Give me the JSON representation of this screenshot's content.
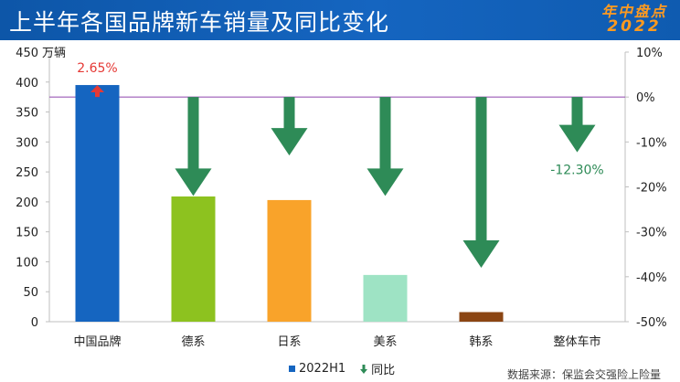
{
  "header": {
    "title": "上半年各国品牌新车销量及同比变化",
    "logo_line1": "年中盘点",
    "logo_line2": "2022"
  },
  "chart_data": {
    "type": "bar",
    "title": "上半年各国品牌新车销量及同比变化",
    "categories": [
      "中国品牌",
      "德系",
      "日系",
      "美系",
      "韩系",
      "整体车市"
    ],
    "series": [
      {
        "name": "2022H1",
        "type": "bar",
        "axis": "left",
        "values": [
          395,
          209,
          203,
          78,
          16,
          null
        ],
        "colors": [
          "#1565c0",
          "#8dc21f",
          "#f9a32a",
          "#9ee3c4",
          "#8b4513",
          null
        ]
      },
      {
        "name": "同比",
        "type": "arrow",
        "axis": "right",
        "values": [
          2.65,
          -22,
          -13,
          -22,
          -38,
          -12.3
        ],
        "color": "#2e8b57",
        "positive_color": "#e53935"
      }
    ],
    "data_labels": [
      {
        "category": "中国品牌",
        "text": "2.65%",
        "color": "#e53935"
      },
      {
        "category": "整体车市",
        "text": "-12.30%",
        "color": "#2e8b57"
      }
    ],
    "ylabel": "万辆",
    "ylim": [
      0,
      450
    ],
    "yticks": [
      0,
      50,
      100,
      150,
      200,
      250,
      300,
      350,
      400,
      450
    ],
    "y2lim": [
      -50,
      10
    ],
    "y2ticks": [
      "10%",
      "0%",
      "-10%",
      "-20%",
      "-30%",
      "-40%",
      "-50%"
    ],
    "zero_line_color": "#9b59b6",
    "grid": false,
    "legend": "bottom-center"
  },
  "legend": {
    "bar_label": "2022H1",
    "arrow_label": "同比"
  },
  "source": "数据来源：保监会交强险上险量"
}
